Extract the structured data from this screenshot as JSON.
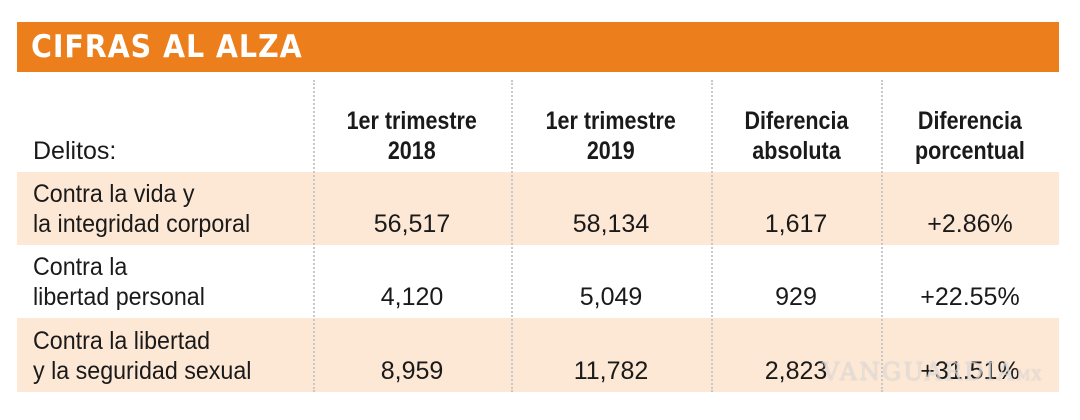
{
  "header": {
    "title": "CIFRAS AL ALZA",
    "color": "#ec7f1b"
  },
  "table": {
    "columns": {
      "delitos": "Delitos:",
      "q1_2018": [
        "1er trimestre",
        "2018"
      ],
      "q1_2019": [
        "1er trimestre",
        "2019"
      ],
      "abs_diff": [
        "Diferencia",
        "absoluta"
      ],
      "pct_diff": [
        "Diferencia",
        "porcentual"
      ]
    },
    "rows": [
      {
        "label": [
          "Contra la vida y",
          "la integridad corporal"
        ],
        "q1_2018": "56,517",
        "q1_2019": "58,134",
        "abs_diff": "1,617",
        "pct_diff": "+2.86%"
      },
      {
        "label": [
          "Contra la",
          "libertad personal"
        ],
        "q1_2018": "4,120",
        "q1_2019": "5,049",
        "abs_diff": "929",
        "pct_diff": "+22.55%"
      },
      {
        "label": [
          "Contra la libertad",
          "y la seguridad sexual"
        ],
        "q1_2018": "8,959",
        "q1_2019": "11,782",
        "abs_diff": "2,823",
        "pct_diff": "+31.51%"
      }
    ],
    "shade_color": "#fde8d6"
  },
  "watermark": {
    "text": "VANGUARDIA",
    "suffix": "MX"
  },
  "chart_data": {
    "type": "table",
    "title": "CIFRAS AL ALZA",
    "columns": [
      "Delitos:",
      "1er trimestre 2018",
      "1er trimestre 2019",
      "Diferencia absoluta",
      "Diferencia porcentual"
    ],
    "rows": [
      [
        "Contra la vida y la integridad corporal",
        56517,
        58134,
        1617,
        "+2.86%"
      ],
      [
        "Contra la libertad personal",
        4120,
        5049,
        929,
        "+22.55%"
      ],
      [
        "Contra la libertad y la seguridad sexual",
        8959,
        11782,
        2823,
        "+31.51%"
      ]
    ]
  }
}
